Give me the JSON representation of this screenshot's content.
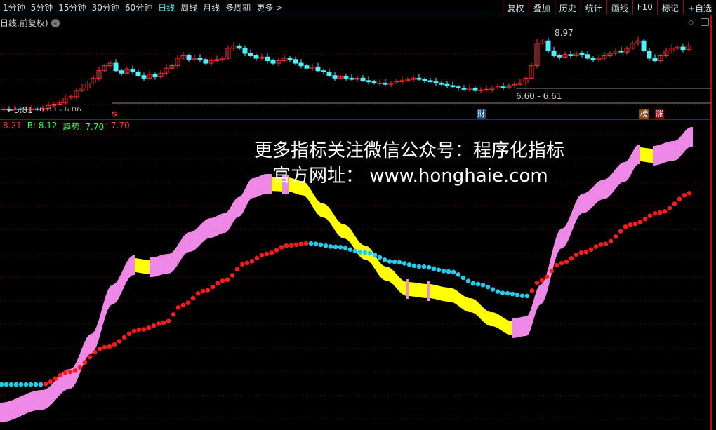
{
  "periods": [
    "1分钟",
    "5分钟",
    "15分钟",
    "30分钟",
    "60分钟",
    "日线",
    "周线",
    "月线",
    "多周期",
    "更多 >"
  ],
  "active_period": "日线",
  "tools": [
    "复权",
    "叠加",
    "历史",
    "统计",
    "画线",
    "F10",
    "标记",
    "+自选"
  ],
  "subtitle": "日线,前复权)",
  "price": {
    "high_label": "8.97",
    "low_label": "5.81",
    "range_label_1": "6.60 - 6.61",
    "range_label_2": "6.03 - 6.06"
  },
  "markers": {
    "dollar": "$",
    "cai": "财",
    "bang": "榜",
    "zhang": "涨"
  },
  "legend": {
    "a": "8.21",
    "b": "B: 8.12",
    "trend": "趋势: 7.70",
    "d": ": 7.70"
  },
  "watermark": {
    "line1": "更多指标关注微信公众号：程序化指标",
    "line2": "官方网址： www.honghaie.com"
  },
  "colors": {
    "up": "#ff3030",
    "down": "#50f0ff",
    "band_up": "#ee88e6",
    "band_down": "#ffff00",
    "line_up": "#ff1a1a",
    "line_down": "#22ccee",
    "grid": "#a00000"
  },
  "closes": [
    5.85,
    5.83,
    5.86,
    5.84,
    5.85,
    5.86,
    5.84,
    5.88,
    6.0,
    6.05,
    6.1,
    6.3,
    6.35,
    6.6,
    6.7,
    6.9,
    7.1,
    7.4,
    7.6,
    7.7,
    7.4,
    7.3,
    7.45,
    7.35,
    7.2,
    7.1,
    7.25,
    7.15,
    7.3,
    7.5,
    7.6,
    7.9,
    8.0,
    7.85,
    7.9,
    7.85,
    7.7,
    7.8,
    7.85,
    7.9,
    8.3,
    8.4,
    8.3,
    8.1,
    8.0,
    7.9,
    7.95,
    7.8,
    7.7,
    7.8,
    7.9,
    7.85,
    7.7,
    7.6,
    7.5,
    7.55,
    7.4,
    7.35,
    7.2,
    7.1,
    7.15,
    7.1,
    7.05,
    7.1,
    7.0,
    6.95,
    6.9,
    6.9,
    6.85,
    6.9,
    6.95,
    7.0,
    7.05,
    7.1,
    7.05,
    7.0,
    6.95,
    6.9,
    6.85,
    6.8,
    6.75,
    6.7,
    6.65,
    6.7,
    6.6,
    6.62,
    6.65,
    6.7,
    6.75,
    6.72,
    6.8,
    6.85,
    6.9,
    7.1,
    7.6,
    8.5,
    8.6,
    8.2,
    8.0,
    7.95,
    8.05,
    8.0,
    8.1,
    8.05,
    7.9,
    7.85,
    7.9,
    8.0,
    8.1,
    8.2,
    8.15,
    8.3,
    8.5,
    8.6,
    8.2,
    7.9,
    7.8,
    8.0,
    8.2,
    8.3,
    8.35,
    8.25,
    8.4
  ]
}
